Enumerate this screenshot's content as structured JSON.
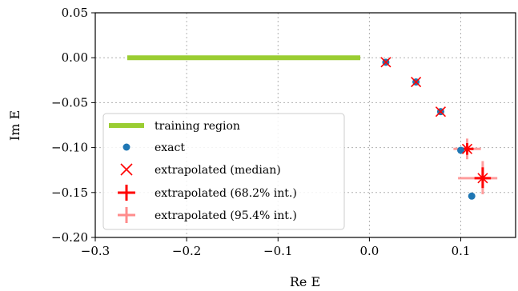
{
  "chart_data": {
    "type": "scatter",
    "xlabel": "Re E",
    "ylabel": "Im E",
    "xlim": [
      -0.3,
      0.16
    ],
    "ylim": [
      -0.2,
      0.05
    ],
    "x_ticks": [
      -0.3,
      -0.2,
      -0.1,
      0.0,
      0.1
    ],
    "x_tick_labels": [
      "−0.3",
      "−0.2",
      "−0.1",
      "0.0",
      "0.1"
    ],
    "y_ticks": [
      0.05,
      0.0,
      -0.05,
      -0.1,
      -0.15,
      -0.2
    ],
    "y_tick_labels": [
      "0.05",
      "0.00",
      "−0.05",
      "−0.10",
      "−0.15",
      "−0.20"
    ],
    "grid": true,
    "legend_position": "lower-left",
    "colors": {
      "training": "#9acd32",
      "exact": "#1f77b4",
      "extrapolated": "#ff0000",
      "interval_95": "#ff8c8c"
    },
    "training_region": {
      "x": [
        -0.265,
        -0.01
      ],
      "y": 0.0
    },
    "exact": {
      "x": [
        0.018,
        0.051,
        0.078,
        0.1,
        0.112
      ],
      "y": [
        -0.005,
        -0.027,
        -0.06,
        -0.103,
        -0.154
      ]
    },
    "extrapolated_median": {
      "x": [
        0.018,
        0.051,
        0.078,
        0.107,
        0.124
      ],
      "y": [
        -0.005,
        -0.027,
        -0.06,
        -0.1015,
        -0.134
      ]
    },
    "interval_68": [
      {
        "x": [
          0.016,
          0.02
        ],
        "y": [
          -0.007,
          -0.003
        ]
      },
      {
        "x": [
          0.049,
          0.053
        ],
        "y": [
          -0.029,
          -0.025
        ]
      },
      {
        "x": [
          0.076,
          0.08
        ],
        "y": [
          -0.062,
          -0.058
        ]
      },
      {
        "x": [
          0.1,
          0.114
        ],
        "y": [
          -0.108,
          -0.095
        ]
      },
      {
        "x": [
          0.115,
          0.133
        ],
        "y": [
          -0.145,
          -0.122
        ]
      }
    ],
    "interval_95": [
      {
        "x": [
          0.016,
          0.02
        ],
        "y": [
          -0.007,
          -0.003
        ]
      },
      {
        "x": [
          0.048,
          0.054
        ],
        "y": [
          -0.03,
          -0.024
        ]
      },
      {
        "x": [
          0.075,
          0.081
        ],
        "y": [
          -0.063,
          -0.057
        ]
      },
      {
        "x": [
          0.092,
          0.122
        ],
        "y": [
          -0.113,
          -0.09
        ]
      },
      {
        "x": [
          0.097,
          0.14
        ],
        "y": [
          -0.152,
          -0.115
        ]
      }
    ],
    "legend": [
      {
        "label": "training region",
        "marker": "line"
      },
      {
        "label": "exact",
        "marker": "dot"
      },
      {
        "label": "extrapolated (median)",
        "marker": "x"
      },
      {
        "label": "extrapolated (68.2% int.)",
        "marker": "cross"
      },
      {
        "label": "extrapolated (95.4% int.)",
        "marker": "cross-light"
      }
    ]
  }
}
